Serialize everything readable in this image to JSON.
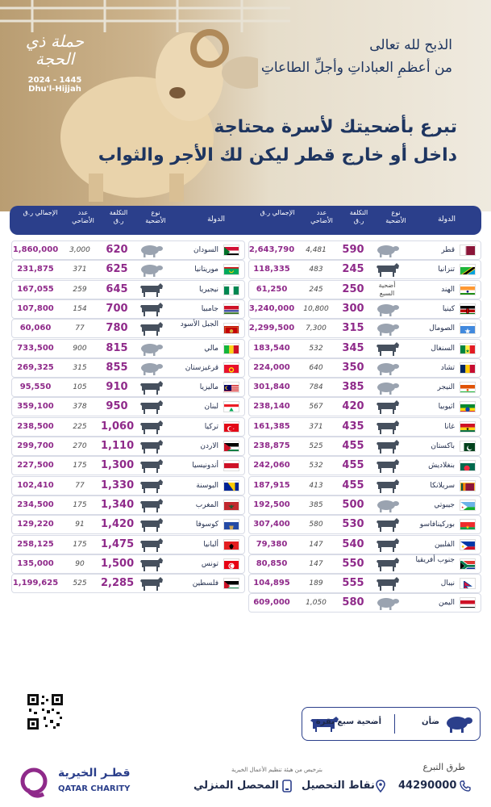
{
  "hero": {
    "line1": "الذبح لله تعالى",
    "line2": "من أعظمِ العباداتِ وأجلِّ الطاعاتِ",
    "line3": "تبرع بأضحيتك لأسرة محتاجة",
    "line4": "داخل أو خارج قطر ليكن لك الأجر والثواب",
    "campaign_script": "حملة ذي الحجة",
    "campaign_years": "2024 - 1445",
    "campaign_en": "Dhu'l-Hijjah"
  },
  "table_headers": {
    "country": "الدولة",
    "type": "نوع الأضحية",
    "cost": "التكلفة ر.ق",
    "count": "عدد الأضاحي",
    "total": "الإجمالي ر.ق"
  },
  "right_rows": [
    {
      "country": "قطر",
      "type": "sheep",
      "cost": "590",
      "count": "4,481",
      "total": "2,643,790",
      "flag": "qatar"
    },
    {
      "country": "تنزانيا",
      "type": "cow",
      "cost": "245",
      "count": "483",
      "total": "118,335",
      "flag": "tanzania"
    },
    {
      "country": "الهند",
      "type": "text",
      "type_label": "أضحية السبع",
      "cost": "250",
      "count": "245",
      "total": "61,250",
      "flag": "india"
    },
    {
      "country": "كينيا",
      "type": "sheep",
      "cost": "300",
      "count": "10,800",
      "total": "3,240,000",
      "flag": "kenya"
    },
    {
      "country": "الصومال",
      "type": "sheep",
      "cost": "315",
      "count": "7,300",
      "total": "2,299,500",
      "flag": "somalia"
    },
    {
      "country": "السنغال",
      "type": "cow",
      "cost": "345",
      "count": "532",
      "total": "183,540",
      "flag": "senegal"
    },
    {
      "country": "تشاد",
      "type": "sheep",
      "cost": "350",
      "count": "640",
      "total": "224,000",
      "flag": "chad"
    },
    {
      "country": "النيجر",
      "type": "sheep",
      "cost": "385",
      "count": "784",
      "total": "301,840",
      "flag": "niger"
    },
    {
      "country": "اثيوبيا",
      "type": "cow",
      "cost": "420",
      "count": "567",
      "total": "238,140",
      "flag": "ethiopia"
    },
    {
      "country": "غانا",
      "type": "cow",
      "cost": "435",
      "count": "371",
      "total": "161,385",
      "flag": "ghana"
    },
    {
      "country": "باكستان",
      "type": "cow",
      "cost": "455",
      "count": "525",
      "total": "238,875",
      "flag": "pakistan"
    },
    {
      "country": "بنغلاديش",
      "type": "cow",
      "cost": "455",
      "count": "532",
      "total": "242,060",
      "flag": "bangladesh"
    },
    {
      "country": "سريلانكا",
      "type": "cow",
      "cost": "455",
      "count": "413",
      "total": "187,915",
      "flag": "srilanka"
    },
    {
      "country": "جيبوتي",
      "type": "sheep",
      "cost": "500",
      "count": "385",
      "total": "192,500",
      "flag": "djibouti"
    },
    {
      "country": "بوركينافاسو",
      "type": "cow",
      "cost": "530",
      "count": "580",
      "total": "307,400",
      "flag": "burkina"
    },
    {
      "country": "الفلبين",
      "type": "cow",
      "cost": "540",
      "count": "147",
      "total": "79,380",
      "flag": "philippines"
    },
    {
      "country": "جنوب أفريقيا",
      "type": "cow",
      "cost": "550",
      "count": "147",
      "total": "80,850",
      "flag": "southafrica"
    },
    {
      "country": "نيبال",
      "type": "cow",
      "cost": "555",
      "count": "189",
      "total": "104,895",
      "flag": "nepal"
    },
    {
      "country": "اليمن",
      "type": "sheep",
      "cost": "580",
      "count": "1,050",
      "total": "609,000",
      "flag": "yemen"
    }
  ],
  "left_rows": [
    {
      "country": "السودان",
      "type": "sheep",
      "cost": "620",
      "count": "3,000",
      "total": "1,860,000",
      "flag": "sudan"
    },
    {
      "country": "موريتانيا",
      "type": "sheep",
      "cost": "625",
      "count": "371",
      "total": "231,875",
      "flag": "mauritania"
    },
    {
      "country": "نيجيريا",
      "type": "cow",
      "cost": "645",
      "count": "259",
      "total": "167,055",
      "flag": "nigeria"
    },
    {
      "country": "جامبيا",
      "type": "cow",
      "cost": "700",
      "count": "154",
      "total": "107,800",
      "flag": "gambia"
    },
    {
      "country": "الجبل الأسود",
      "type": "cow",
      "cost": "780",
      "count": "77",
      "total": "60,060",
      "flag": "montenegro"
    },
    {
      "country": "مالي",
      "type": "sheep",
      "cost": "815",
      "count": "900",
      "total": "733,500",
      "flag": "mali"
    },
    {
      "country": "قرغيزستان",
      "type": "sheep",
      "cost": "855",
      "count": "315",
      "total": "269,325",
      "flag": "kyrgyzstan"
    },
    {
      "country": "ماليزيا",
      "type": "cow",
      "cost": "910",
      "count": "105",
      "total": "95,550",
      "flag": "malaysia"
    },
    {
      "country": "لبنان",
      "type": "cow",
      "cost": "950",
      "count": "378",
      "total": "359,100",
      "flag": "lebanon"
    },
    {
      "country": "تركيا",
      "type": "cow",
      "cost": "1,060",
      "count": "225",
      "total": "238,500",
      "flag": "turkey"
    },
    {
      "country": "الاردن",
      "type": "cow",
      "cost": "1,110",
      "count": "270",
      "total": "299,700",
      "flag": "jordan"
    },
    {
      "country": "أندونيسيا",
      "type": "cow",
      "cost": "1,300",
      "count": "175",
      "total": "227,500",
      "flag": "indonesia"
    },
    {
      "country": "البوسنة",
      "type": "cow",
      "cost": "1,330",
      "count": "77",
      "total": "102,410",
      "flag": "bosnia"
    },
    {
      "country": "المغرب",
      "type": "cow",
      "cost": "1,340",
      "count": "175",
      "total": "234,500",
      "flag": "morocco"
    },
    {
      "country": "كوسوفا",
      "type": "cow",
      "cost": "1,420",
      "count": "91",
      "total": "129,220",
      "flag": "kosovo"
    },
    {
      "country": "ألبانيا",
      "type": "cow",
      "cost": "1,475",
      "count": "175",
      "total": "258,125",
      "flag": "albania"
    },
    {
      "country": "تونس",
      "type": "cow",
      "cost": "1,500",
      "count": "90",
      "total": "135,000",
      "flag": "tunisia"
    },
    {
      "country": "فلسطين",
      "type": "cow",
      "cost": "2,285",
      "count": "525",
      "total": "1,199,625",
      "flag": "palestine"
    }
  ],
  "legend": {
    "sheep_label": "ضأن",
    "cow_label": "أضحية سبع بقرة"
  },
  "footer": {
    "methods_title": "طرق التبرع",
    "phone": "44290000",
    "collection_points": "نقاط التحصيل",
    "home_collector": "المحصل المنزلي",
    "license": "بترخيص من هيئة تنظيم الأعمال الخيرية",
    "logo_ar": "قطـر الخيرية",
    "logo_en": "QATAR CHARITY"
  },
  "colors": {
    "navy": "#2b3f8b",
    "purple": "#8f2a8a",
    "sheep": "#9aa3b0",
    "cow": "#46505e"
  }
}
